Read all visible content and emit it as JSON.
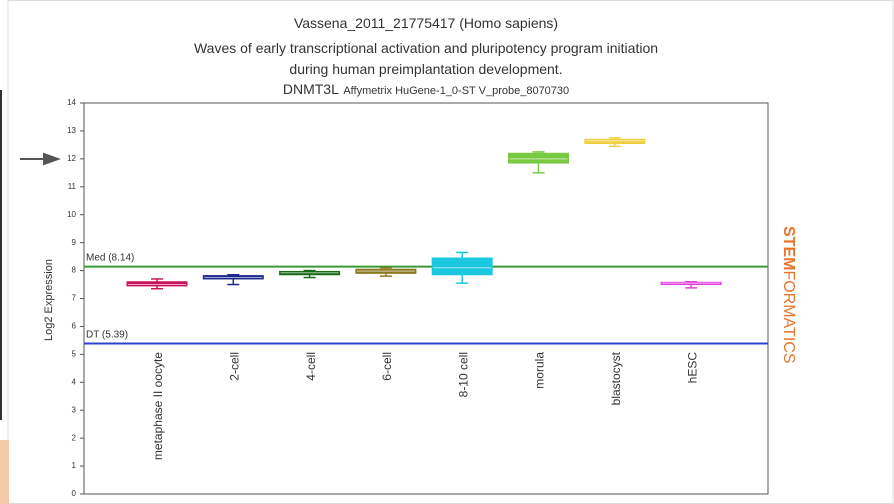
{
  "chart_data": {
    "type": "box",
    "title_lines": [
      "Vassena_2011_21775417 (Homo sapiens)",
      "Waves of early transcriptional activation and pluripotency program initiation",
      "during human preimplantation development."
    ],
    "gene": "DNMT3L",
    "probe": "Affymetrix HuGene-1_0-ST V_probe_8070730",
    "ylabel": "Log2 Expression",
    "brand": [
      "STEM",
      "FORMATICS"
    ],
    "categories": [
      "metaphase II oocyte",
      "2-cell",
      "4-cell",
      "6-cell",
      "8-10 cell",
      "morula",
      "blastocyst",
      "hESC"
    ],
    "boxes": [
      {
        "min": 7.35,
        "q1": 7.45,
        "median": 7.5,
        "q3": 7.6,
        "max": 7.7
      },
      {
        "min": 7.5,
        "q1": 7.7,
        "median": 7.75,
        "q3": 7.82,
        "max": 7.85
      },
      {
        "min": 7.75,
        "q1": 7.85,
        "median": 7.92,
        "q3": 7.97,
        "max": 8.0
      },
      {
        "min": 7.8,
        "q1": 7.9,
        "median": 7.98,
        "q3": 8.05,
        "max": 8.1
      },
      {
        "min": 7.55,
        "q1": 7.85,
        "median": 8.1,
        "q3": 8.45,
        "max": 8.65
      },
      {
        "min": 11.5,
        "q1": 11.85,
        "median": 12.0,
        "q3": 12.2,
        "max": 12.25
      },
      {
        "min": 12.45,
        "q1": 12.55,
        "median": 12.65,
        "q3": 12.7,
        "max": 12.75
      },
      {
        "min": 7.38,
        "q1": 7.5,
        "median": 7.55,
        "q3": 7.58,
        "max": 7.6
      }
    ],
    "colors": [
      "#c8175e",
      "#1c2a8c",
      "#1a6b1a",
      "#8b7a22",
      "#1cc8e0",
      "#7ac943",
      "#f0d040",
      "#e040e0"
    ],
    "reference_lines": [
      {
        "label": "Med (8.14)",
        "value": 8.14,
        "color": "#3a9a3a"
      },
      {
        "label": "DT (5.39)",
        "value": 5.39,
        "color": "#3040d0"
      }
    ],
    "ylim": [
      0,
      14
    ],
    "yticks": [
      0,
      1,
      2,
      3,
      4,
      5,
      6,
      7,
      8,
      9,
      10,
      11,
      12,
      13,
      14
    ]
  }
}
